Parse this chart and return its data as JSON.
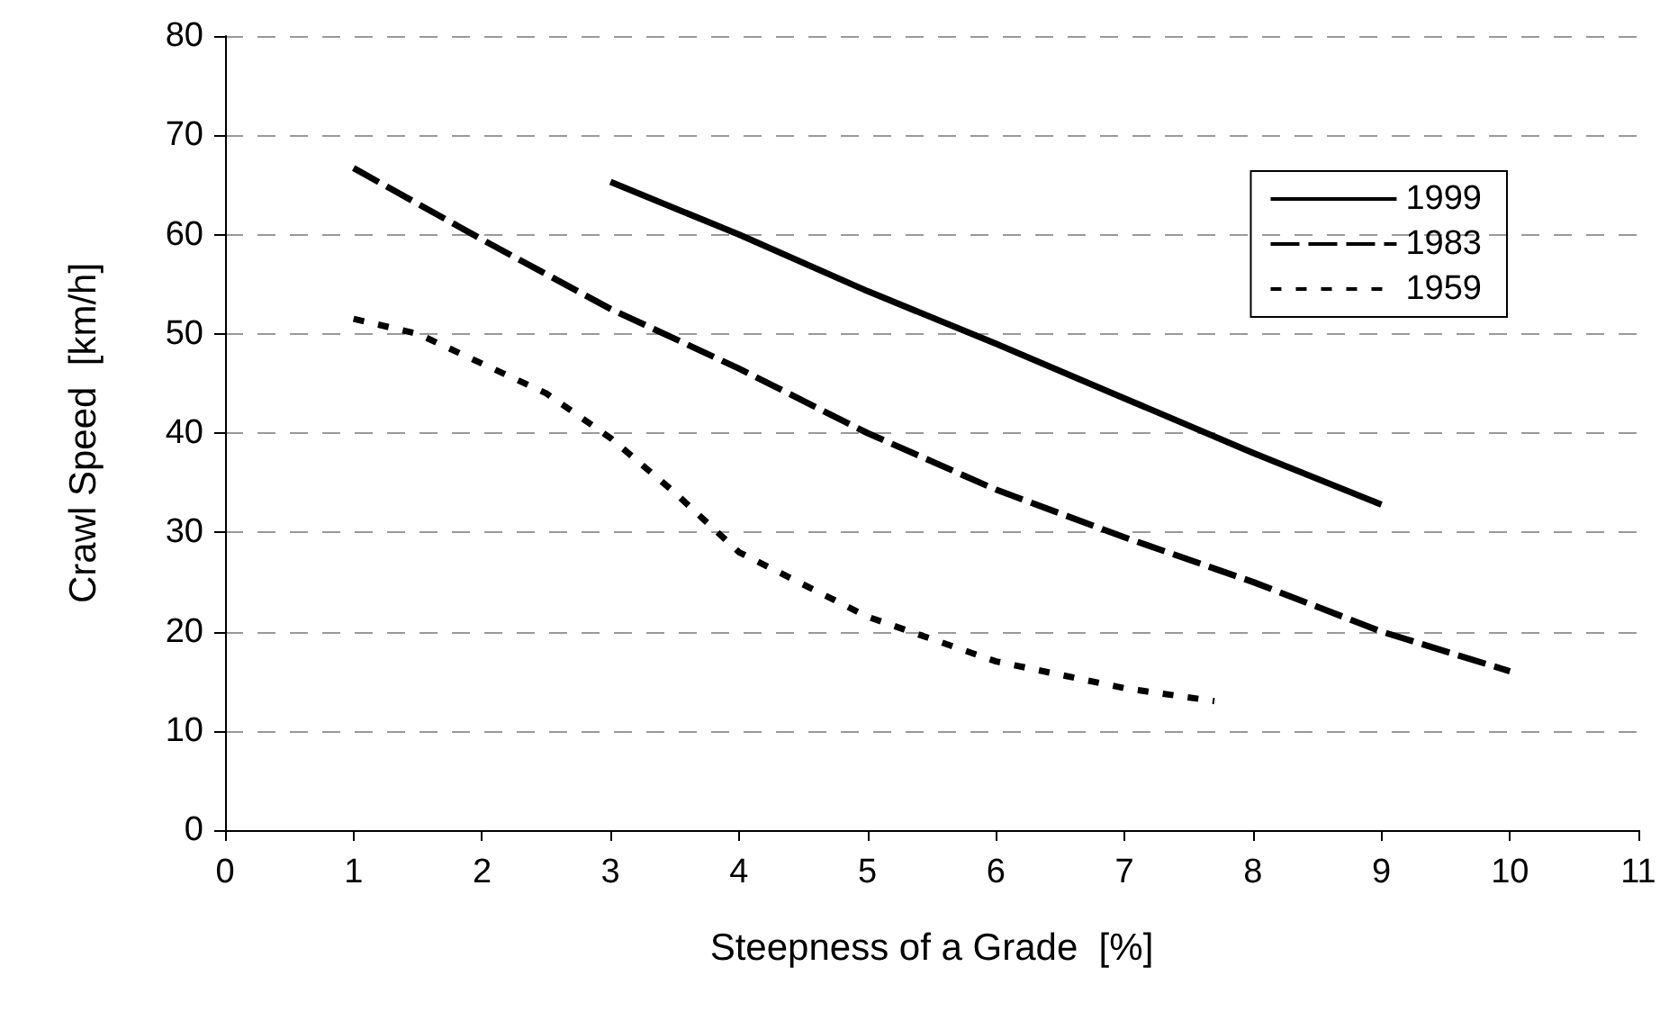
{
  "chart_data": {
    "type": "line",
    "xlabel": "Steepness of a Grade  [%]",
    "ylabel": "Crawl Speed  [km/h]",
    "xlim": [
      0,
      11
    ],
    "xticks": [
      0,
      1,
      2,
      3,
      4,
      5,
      6,
      7,
      8,
      9,
      10,
      11
    ],
    "ylim": [
      0,
      80
    ],
    "yticks": [
      0,
      10,
      20,
      30,
      40,
      50,
      60,
      70,
      80
    ],
    "grid": "y",
    "legend": "top right",
    "marker": "none",
    "series": [
      {
        "name": "1999",
        "color": "#000000",
        "line_style": "solid",
        "x": [
          3,
          4,
          5,
          6,
          7,
          8,
          9
        ],
        "values": [
          65.3,
          60,
          54.3,
          49,
          43.5,
          38,
          32.8
        ]
      },
      {
        "name": "1983",
        "color": "#000000",
        "line_style": "dashed",
        "x": [
          1,
          2,
          3,
          4,
          5,
          6,
          7,
          8,
          9,
          10
        ],
        "values": [
          66.7,
          59.5,
          52.5,
          46.5,
          40,
          34.3,
          29.5,
          25,
          20,
          16
        ]
      },
      {
        "name": "1959",
        "color": "#000000",
        "line_style": "dotted",
        "x": [
          1,
          1.5,
          2,
          2.5,
          3,
          3.5,
          4,
          5,
          6,
          7,
          7.7
        ],
        "values": [
          51.5,
          50,
          47,
          44,
          39.5,
          34,
          28,
          21.5,
          17,
          14.3,
          13
        ]
      }
    ]
  }
}
